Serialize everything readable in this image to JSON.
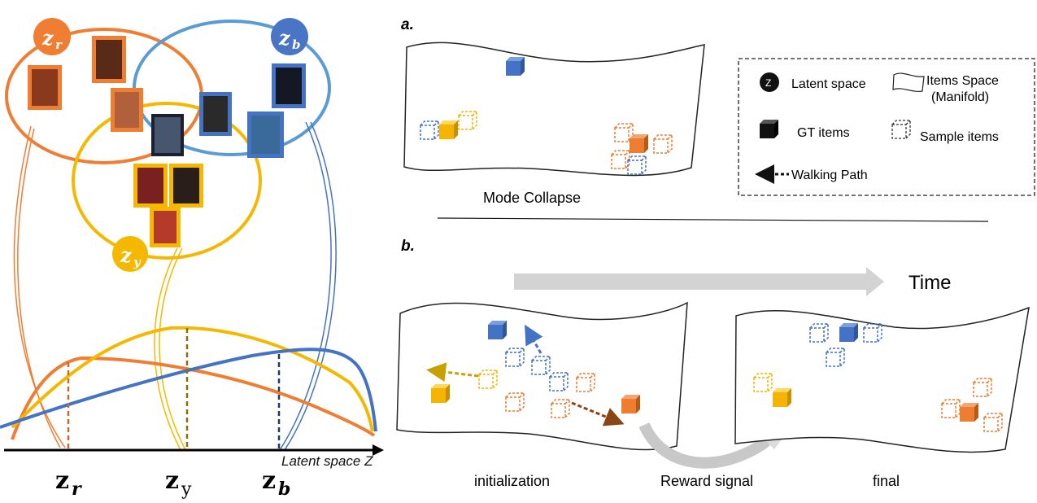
{
  "left_panel": {
    "circles": {
      "r": {
        "label_base": "z",
        "label_sub": "r",
        "color": "#ef7d32"
      },
      "b": {
        "label_base": "z",
        "label_sub": "b",
        "color": "#4a74c4"
      },
      "y": {
        "label_base": "z",
        "label_sub": "y",
        "color": "#f5b800"
      }
    },
    "axis": {
      "label": "Latent space Z",
      "ticks": [
        {
          "base": "z",
          "sub": "r"
        },
        {
          "base": "z",
          "sub": "y"
        },
        {
          "base": "z",
          "sub": "b"
        }
      ]
    },
    "curve_colors": {
      "orange": "#ef7d32",
      "yellow": "#f5b800",
      "blue": "#4472c4"
    }
  },
  "panel_a": {
    "letter": "a.",
    "caption": "Mode Collapse"
  },
  "legend": {
    "latent_icon": "Z",
    "latent_label": "Latent space",
    "items_space_label_1": "Items Space",
    "items_space_label_2": "(Manifold)",
    "gt_label": "GT items",
    "sample_label": "Sample items",
    "walk_label": "Walking Path"
  },
  "panel_b": {
    "letter": "b.",
    "time_label": "Time",
    "init_caption": "initialization",
    "reward_caption": "Reward signal",
    "final_caption": "final"
  },
  "colors": {
    "blue_cube": "#4472c4",
    "orange_cube": "#ed7d31",
    "yellow_cube": "#f5b400",
    "brown_arrow": "#8b4513",
    "gold_arrow": "#c8a000",
    "grey_arrow": "#cccccc"
  }
}
